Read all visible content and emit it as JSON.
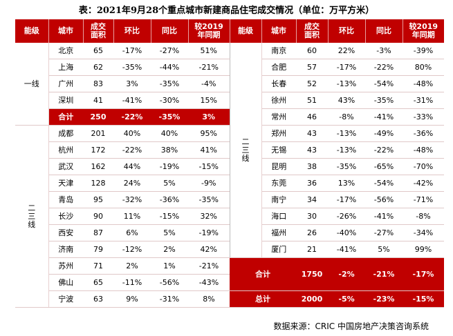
{
  "title": "表：2021年9月28个重点城市新建商品住宅成交情况（单位：万平方米）",
  "headers": [
    "能级",
    "城市",
    "成交面积",
    "环比",
    "同比",
    "较2019年同期"
  ],
  "tier1_label": "一线",
  "tier23_label": "二三线",
  "left_rows": [
    [
      "北京",
      "65",
      "-17%",
      "-27%",
      "51%"
    ],
    [
      "上海",
      "62",
      "-35%",
      "-44%",
      "-21%"
    ],
    [
      "广州",
      "83",
      "3%",
      "-35%",
      "-4%"
    ],
    [
      "深圳",
      "41",
      "-41%",
      "-30%",
      "15%"
    ],
    [
      "合计",
      "250",
      "-22%",
      "-35%",
      "3%"
    ],
    [
      "成都",
      "201",
      "40%",
      "40%",
      "95%"
    ],
    [
      "杭州",
      "172",
      "-22%",
      "38%",
      "41%"
    ],
    [
      "武汉",
      "162",
      "44%",
      "-19%",
      "-15%"
    ],
    [
      "天津",
      "128",
      "24%",
      "5%",
      "-9%"
    ],
    [
      "青岛",
      "95",
      "-32%",
      "-36%",
      "-35%"
    ],
    [
      "长沙",
      "90",
      "11%",
      "-15%",
      "32%"
    ],
    [
      "西安",
      "87",
      "6%",
      "5%",
      "-19%"
    ],
    [
      "济南",
      "79",
      "-12%",
      "2%",
      "42%"
    ],
    [
      "苏州",
      "71",
      "2%",
      "1%",
      "-21%"
    ],
    [
      "佛山",
      "65",
      "-11%",
      "-56%",
      "-43%"
    ],
    [
      "宁波",
      "63",
      "9%",
      "-31%",
      "8%"
    ]
  ],
  "right_rows": [
    [
      "南京",
      "60",
      "22%",
      "-3%",
      "-39%"
    ],
    [
      "合肥",
      "57",
      "-17%",
      "-22%",
      "80%"
    ],
    [
      "长春",
      "52",
      "-13%",
      "-54%",
      "-48%"
    ],
    [
      "徐州",
      "51",
      "43%",
      "-35%",
      "-31%"
    ],
    [
      "常州",
      "46",
      "-8%",
      "-41%",
      "-33%"
    ],
    [
      "郑州",
      "43",
      "-13%",
      "-49%",
      "-36%"
    ],
    [
      "无锡",
      "43",
      "-13%",
      "-22%",
      "-48%"
    ],
    [
      "昆明",
      "38",
      "-35%",
      "-65%",
      "-70%"
    ],
    [
      "东莞",
      "36",
      "13%",
      "-54%",
      "-42%"
    ],
    [
      "南宁",
      "34",
      "-17%",
      "-56%",
      "-71%"
    ],
    [
      "海口",
      "30",
      "-26%",
      "-41%",
      "-8%"
    ],
    [
      "福州",
      "26",
      "-40%",
      "-27%",
      "-34%"
    ],
    [
      "厦门",
      "21",
      "-41%",
      "5%",
      "99%"
    ]
  ],
  "right_total": [
    "合计",
    "1750",
    "-2%",
    "-21%",
    "-17%"
  ],
  "grand_total": [
    "总计",
    "2000",
    "-5%",
    "-23%",
    "-15%"
  ],
  "source": "数据来源：CRIC 中国房地产决策咨询系统"
}
